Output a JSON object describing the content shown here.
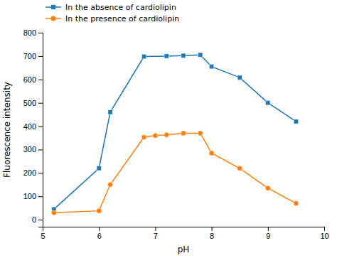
{
  "chart_data": {
    "type": "line",
    "xlabel": "pH",
    "ylabel": "Fluorescence intensity",
    "series": [
      {
        "name": "In the absence of cardiolipin",
        "marker": "square",
        "x": [
          5.2,
          6.0,
          6.2,
          6.8,
          7.2,
          7.5,
          7.8,
          8.0,
          8.5,
          9.0,
          9.5
        ],
        "values": [
          45,
          220,
          460,
          698,
          700,
          702,
          705,
          655,
          608,
          500,
          420
        ]
      },
      {
        "name": "In the presence of cardiolipin",
        "marker": "circle",
        "x": [
          5.2,
          6.0,
          6.2,
          6.8,
          7.0,
          7.2,
          7.5,
          7.8,
          8.0,
          8.5,
          9.0,
          9.5
        ],
        "values": [
          30,
          38,
          150,
          353,
          360,
          363,
          370,
          370,
          285,
          220,
          135,
          70
        ]
      }
    ],
    "xlim": [
      5.0,
      10.0
    ],
    "ylim": [
      -30,
      800
    ],
    "xticks": [
      5,
      6,
      7,
      8,
      9,
      10
    ],
    "yticks": [
      0,
      100,
      200,
      300,
      400,
      500,
      600,
      700,
      800
    ],
    "legend": "upper left",
    "grid": false
  }
}
